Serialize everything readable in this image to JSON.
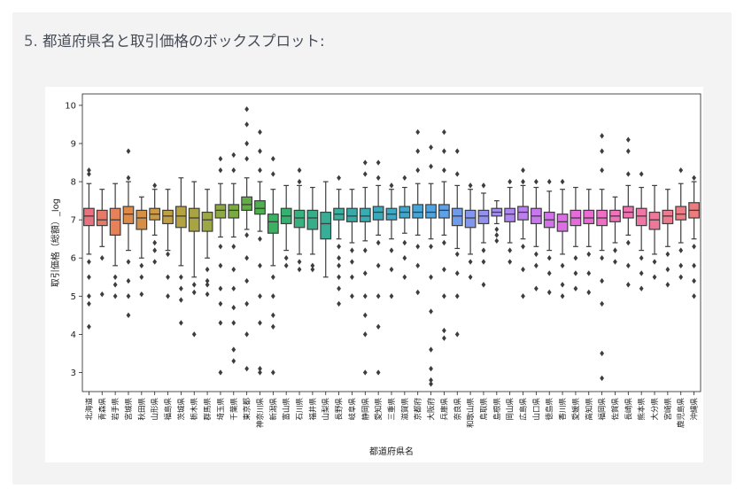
{
  "heading": {
    "number": "5.",
    "text": "都道府県名と取引価格のボックスプロット:"
  },
  "chart_data": {
    "type": "box",
    "xlabel": "都道府県名",
    "ylabel": "取引価格（総額）_log",
    "ylim": [
      2.5,
      10.3
    ],
    "yticks": [
      3,
      4,
      5,
      6,
      7,
      8,
      9,
      10
    ],
    "grid": false,
    "categories": [
      "北海道",
      "青森県",
      "岩手県",
      "宮城県",
      "秋田県",
      "山形県",
      "福島県",
      "茨城県",
      "栃木県",
      "群馬県",
      "埼玉県",
      "千葉県",
      "東京都",
      "神奈川県",
      "新潟県",
      "富山県",
      "石川県",
      "福井県",
      "山梨県",
      "長野県",
      "岐阜県",
      "静岡県",
      "愛知県",
      "三重県",
      "滋賀県",
      "京都府",
      "大阪府",
      "兵庫県",
      "奈良県",
      "和歌山県",
      "鳥取県",
      "島根県",
      "岡山県",
      "広島県",
      "山口県",
      "徳島県",
      "香川県",
      "愛媛県",
      "高知県",
      "福岡県",
      "佐賀県",
      "長崎県",
      "熊本県",
      "大分県",
      "宮崎県",
      "鹿児島県",
      "沖縄県"
    ],
    "colors": [
      "#e9727f",
      "#e67a68",
      "#e5825a",
      "#de8a49",
      "#d59045",
      "#cc9a44",
      "#c19f44",
      "#b5a243",
      "#a8a444",
      "#9ca745",
      "#8ea844",
      "#7aab40",
      "#62ad44",
      "#4eb04f",
      "#3ab262",
      "#35b06f",
      "#37b17e",
      "#36ae8a",
      "#37ae95",
      "#3aaf9f",
      "#37aba7",
      "#39acb2",
      "#3ba9ba",
      "#3da8c3",
      "#3fa7cb",
      "#44a5d6",
      "#4ea4e1",
      "#5da1e8",
      "#6e9cea",
      "#8197ed",
      "#9291ee",
      "#a18cef",
      "#ae86ef",
      "#bc7ff0",
      "#c878ec",
      "#d271e9",
      "#dd6de2",
      "#e56bdb",
      "#ea6bd1",
      "#ee6fc5",
      "#ef72bb",
      "#f073b0",
      "#ef76a5",
      "#ee7899",
      "#ed7a8f",
      "#ec7c85",
      "#eb7e7c"
    ],
    "series": [
      {
        "q1": 6.85,
        "median": 7.1,
        "q3": 7.3,
        "whislo": 6.1,
        "whishi": 7.95,
        "fliers": [
          8.3,
          8.2,
          5.9,
          5.5,
          5.0,
          4.8,
          4.2
        ]
      },
      {
        "q1": 6.85,
        "median": 7.0,
        "q3": 7.25,
        "whislo": 6.3,
        "whishi": 7.8,
        "fliers": [
          6.0,
          5.05
        ]
      },
      {
        "q1": 6.6,
        "median": 7.0,
        "q3": 7.3,
        "whislo": 5.8,
        "whishi": 7.95,
        "fliers": [
          5.5,
          5.3,
          5.0
        ]
      },
      {
        "q1": 6.9,
        "median": 7.15,
        "q3": 7.35,
        "whislo": 6.2,
        "whishi": 8.0,
        "fliers": [
          8.1,
          8.8,
          5.9,
          5.4,
          5.0,
          4.5
        ]
      },
      {
        "q1": 6.75,
        "median": 7.05,
        "q3": 7.25,
        "whislo": 6.0,
        "whishi": 7.6,
        "fliers": [
          5.8,
          5.5,
          5.05
        ]
      },
      {
        "q1": 7.0,
        "median": 7.15,
        "q3": 7.3,
        "whislo": 6.6,
        "whishi": 7.8,
        "fliers": [
          7.9,
          6.4,
          6.2,
          5.9
        ]
      },
      {
        "q1": 6.9,
        "median": 7.1,
        "q3": 7.25,
        "whislo": 6.2,
        "whishi": 7.8,
        "fliers": [
          6.1,
          5.5,
          5.0
        ]
      },
      {
        "q1": 6.8,
        "median": 7.1,
        "q3": 7.35,
        "whislo": 5.8,
        "whishi": 8.1,
        "fliers": [
          5.5,
          5.2,
          4.9,
          4.3
        ]
      },
      {
        "q1": 6.7,
        "median": 7.05,
        "q3": 7.3,
        "whislo": 5.5,
        "whishi": 8.0,
        "fliers": [
          5.3,
          5.1,
          4.0
        ]
      },
      {
        "q1": 6.7,
        "median": 7.0,
        "q3": 7.2,
        "whislo": 6.0,
        "whishi": 7.8,
        "fliers": [
          5.7,
          5.4,
          5.3,
          5.05
        ]
      },
      {
        "q1": 7.05,
        "median": 7.25,
        "q3": 7.4,
        "whislo": 6.55,
        "whishi": 7.95,
        "fliers": [
          8.6,
          8.3,
          6.3,
          5.8,
          5.2,
          4.8,
          4.3,
          3.0
        ]
      },
      {
        "q1": 7.05,
        "median": 7.25,
        "q3": 7.4,
        "whislo": 6.55,
        "whishi": 7.95,
        "fliers": [
          8.7,
          8.3,
          6.3,
          5.7,
          5.2,
          4.7,
          4.3,
          3.6,
          3.3
        ]
      },
      {
        "q1": 7.25,
        "median": 7.4,
        "q3": 7.6,
        "whislo": 6.75,
        "whishi": 8.1,
        "fliers": [
          9.9,
          9.5,
          9.0,
          8.6,
          6.6,
          6.0,
          5.4,
          4.8,
          4.0,
          3.1
        ]
      },
      {
        "q1": 7.15,
        "median": 7.3,
        "q3": 7.5,
        "whislo": 6.7,
        "whishi": 8.0,
        "fliers": [
          9.3,
          8.8,
          8.3,
          6.5,
          5.8,
          5.0,
          4.3,
          3.1,
          3.0
        ]
      },
      {
        "q1": 6.65,
        "median": 6.95,
        "q3": 7.15,
        "whislo": 5.8,
        "whishi": 7.8,
        "fliers": [
          8.6,
          8.2,
          5.5,
          5.0,
          4.5,
          4.2,
          3.0
        ]
      },
      {
        "q1": 6.9,
        "median": 7.1,
        "q3": 7.3,
        "whislo": 6.2,
        "whishi": 7.9,
        "fliers": [
          6.0,
          5.8
        ]
      },
      {
        "q1": 6.8,
        "median": 7.05,
        "q3": 7.25,
        "whislo": 6.1,
        "whishi": 7.9,
        "fliers": [
          8.3,
          8.0,
          5.9,
          5.7
        ]
      },
      {
        "q1": 6.75,
        "median": 7.05,
        "q3": 7.25,
        "whislo": 6.1,
        "whishi": 7.85,
        "fliers": [
          5.8,
          5.7
        ]
      },
      {
        "q1": 6.5,
        "median": 6.9,
        "q3": 7.2,
        "whislo": 5.5,
        "whishi": 8.0,
        "fliers": []
      },
      {
        "q1": 7.0,
        "median": 7.15,
        "q3": 7.3,
        "whislo": 6.5,
        "whishi": 7.8,
        "fliers": [
          8.1,
          6.3,
          6.0,
          5.8,
          5.5,
          5.2,
          4.8
        ]
      },
      {
        "q1": 6.95,
        "median": 7.1,
        "q3": 7.3,
        "whislo": 6.4,
        "whishi": 7.8,
        "fliers": [
          6.2,
          5.9,
          5.5,
          5.0
        ]
      },
      {
        "q1": 6.95,
        "median": 7.1,
        "q3": 7.3,
        "whislo": 6.45,
        "whishi": 7.85,
        "fliers": [
          8.5,
          8.2,
          6.2,
          5.6,
          5.0,
          4.5,
          4.0,
          3.0
        ]
      },
      {
        "q1": 7.0,
        "median": 7.2,
        "q3": 7.35,
        "whislo": 6.6,
        "whishi": 7.9,
        "fliers": [
          8.5,
          8.1,
          6.4,
          5.8,
          5.0,
          4.2,
          3.0
        ]
      },
      {
        "q1": 7.0,
        "median": 7.15,
        "q3": 7.3,
        "whislo": 6.5,
        "whishi": 7.8,
        "fliers": [
          7.9,
          6.2,
          5.7,
          5.0
        ]
      },
      {
        "q1": 7.05,
        "median": 7.2,
        "q3": 7.35,
        "whislo": 6.65,
        "whishi": 7.85,
        "fliers": [
          8.1,
          6.4,
          6.0,
          5.5
        ]
      },
      {
        "q1": 7.05,
        "median": 7.2,
        "q3": 7.4,
        "whislo": 6.6,
        "whishi": 7.95,
        "fliers": [
          9.3,
          8.8,
          8.3,
          6.3,
          5.8,
          5.1
        ]
      },
      {
        "q1": 7.05,
        "median": 7.2,
        "q3": 7.4,
        "whislo": 6.5,
        "whishi": 7.95,
        "fliers": [
          8.9,
          8.4,
          6.3,
          5.5,
          4.6,
          3.6,
          3.1,
          2.8,
          2.7
        ]
      },
      {
        "q1": 7.05,
        "median": 7.25,
        "q3": 7.4,
        "whislo": 6.6,
        "whishi": 8.0,
        "fliers": [
          9.3,
          8.8,
          8.3,
          6.4,
          5.7,
          5.0,
          4.1,
          3.9
        ]
      },
      {
        "q1": 6.85,
        "median": 7.1,
        "q3": 7.3,
        "whislo": 6.25,
        "whishi": 7.9,
        "fliers": [
          8.8,
          8.2,
          6.1,
          5.6,
          5.0,
          4.0
        ]
      },
      {
        "q1": 6.8,
        "median": 7.05,
        "q3": 7.25,
        "whislo": 6.1,
        "whishi": 7.8,
        "fliers": [
          7.9,
          5.9,
          5.5
        ]
      },
      {
        "q1": 6.9,
        "median": 7.1,
        "q3": 7.25,
        "whislo": 6.4,
        "whishi": 7.7,
        "fliers": [
          7.9,
          6.2,
          5.9,
          5.3
        ]
      },
      {
        "q1": 7.1,
        "median": 7.2,
        "q3": 7.3,
        "whislo": 6.9,
        "whishi": 7.5,
        "fliers": [
          6.75,
          6.6,
          6.45
        ]
      },
      {
        "q1": 6.95,
        "median": 7.15,
        "q3": 7.3,
        "whislo": 6.4,
        "whishi": 7.85,
        "fliers": [
          8.0,
          6.2,
          5.9
        ]
      },
      {
        "q1": 7.0,
        "median": 7.2,
        "q3": 7.35,
        "whislo": 6.5,
        "whishi": 7.9,
        "fliers": [
          8.3,
          8.0,
          6.3,
          5.7,
          5.0
        ]
      },
      {
        "q1": 6.9,
        "median": 7.1,
        "q3": 7.3,
        "whislo": 6.3,
        "whishi": 7.85,
        "fliers": [
          8.0,
          6.1,
          5.8,
          5.2
        ]
      },
      {
        "q1": 6.8,
        "median": 7.0,
        "q3": 7.2,
        "whislo": 6.2,
        "whishi": 7.75,
        "fliers": [
          8.0,
          6.0,
          5.6,
          5.1
        ]
      },
      {
        "q1": 6.7,
        "median": 6.95,
        "q3": 7.15,
        "whislo": 6.1,
        "whishi": 7.8,
        "fliers": [
          8.0,
          5.8,
          5.3,
          5.0
        ]
      },
      {
        "q1": 6.85,
        "median": 7.05,
        "q3": 7.25,
        "whislo": 6.3,
        "whishi": 7.85,
        "fliers": [
          6.0,
          5.6,
          5.2
        ]
      },
      {
        "q1": 6.9,
        "median": 7.05,
        "q3": 7.25,
        "whislo": 6.3,
        "whishi": 7.8,
        "fliers": [
          6.1,
          5.6,
          5.1
        ]
      },
      {
        "q1": 6.85,
        "median": 7.05,
        "q3": 7.25,
        "whislo": 6.2,
        "whishi": 7.8,
        "fliers": [
          9.2,
          8.8,
          8.3,
          6.0,
          5.4,
          4.8,
          3.5,
          2.85
        ]
      },
      {
        "q1": 6.95,
        "median": 7.1,
        "q3": 7.25,
        "whislo": 6.4,
        "whishi": 7.6,
        "fliers": [
          6.2,
          5.9
        ]
      },
      {
        "q1": 7.05,
        "median": 7.2,
        "q3": 7.35,
        "whislo": 6.6,
        "whishi": 7.9,
        "fliers": [
          9.1,
          8.8,
          8.2,
          6.4,
          5.8,
          5.3
        ]
      },
      {
        "q1": 6.85,
        "median": 7.1,
        "q3": 7.3,
        "whislo": 6.2,
        "whishi": 7.85,
        "fliers": [
          8.2,
          6.0,
          5.6,
          5.2
        ]
      },
      {
        "q1": 6.75,
        "median": 7.0,
        "q3": 7.2,
        "whislo": 6.1,
        "whishi": 7.9,
        "fliers": [
          5.9,
          5.5
        ]
      },
      {
        "q1": 6.9,
        "median": 7.1,
        "q3": 7.25,
        "whislo": 6.3,
        "whishi": 7.8,
        "fliers": [
          6.1,
          5.7,
          5.3
        ]
      },
      {
        "q1": 7.0,
        "median": 7.15,
        "q3": 7.35,
        "whislo": 6.4,
        "whishi": 7.95,
        "fliers": [
          8.3,
          6.2,
          5.8,
          5.5
        ]
      },
      {
        "q1": 7.05,
        "median": 7.25,
        "q3": 7.45,
        "whislo": 6.5,
        "whishi": 8.0,
        "fliers": [
          8.1,
          6.3,
          5.8,
          5.4,
          5.0
        ]
      }
    ]
  }
}
